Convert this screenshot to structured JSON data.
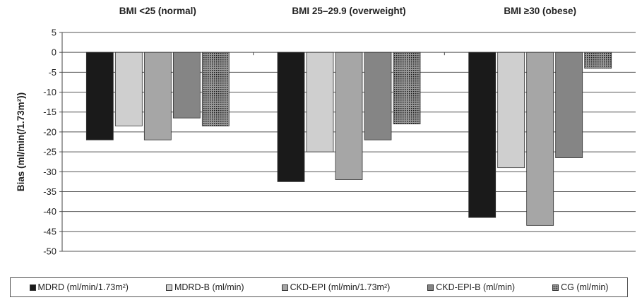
{
  "chart_data": {
    "type": "bar",
    "categories": [
      "BMI <25 (normal)",
      "BMI 25–29.9 (overweight)",
      "BMI ≥30 (obese)"
    ],
    "series": [
      {
        "name": "MDRD (ml/min/1.73m²)",
        "color": "#1a1a1a",
        "values": [
          -22,
          -32.5,
          -41.5
        ]
      },
      {
        "name": "MDRD-B (ml/min)",
        "color": "#cfcfcf",
        "values": [
          -18.5,
          -25,
          -29
        ]
      },
      {
        "name": "CKD-EPI (ml/min/1.73m²)",
        "color": "#a6a6a6",
        "values": [
          -22,
          -32,
          -43.5
        ]
      },
      {
        "name": "CKD-EPI-B (ml/min)",
        "color": "#858585",
        "values": [
          -16.5,
          -22,
          -26.5
        ]
      },
      {
        "name": "CG (ml/min)",
        "color": "#3a3a3a",
        "pattern": "dotted",
        "values": [
          -18.5,
          -18,
          -4
        ]
      }
    ],
    "ylabel": "Bias (ml/min(/1.73m²))",
    "xlabel": "",
    "ylim": [
      -50,
      5
    ],
    "yticks": [
      5,
      0,
      -5,
      -10,
      -15,
      -20,
      -25,
      -30,
      -35,
      -40,
      -45,
      -50
    ],
    "grid": true,
    "legend": "bottom"
  }
}
